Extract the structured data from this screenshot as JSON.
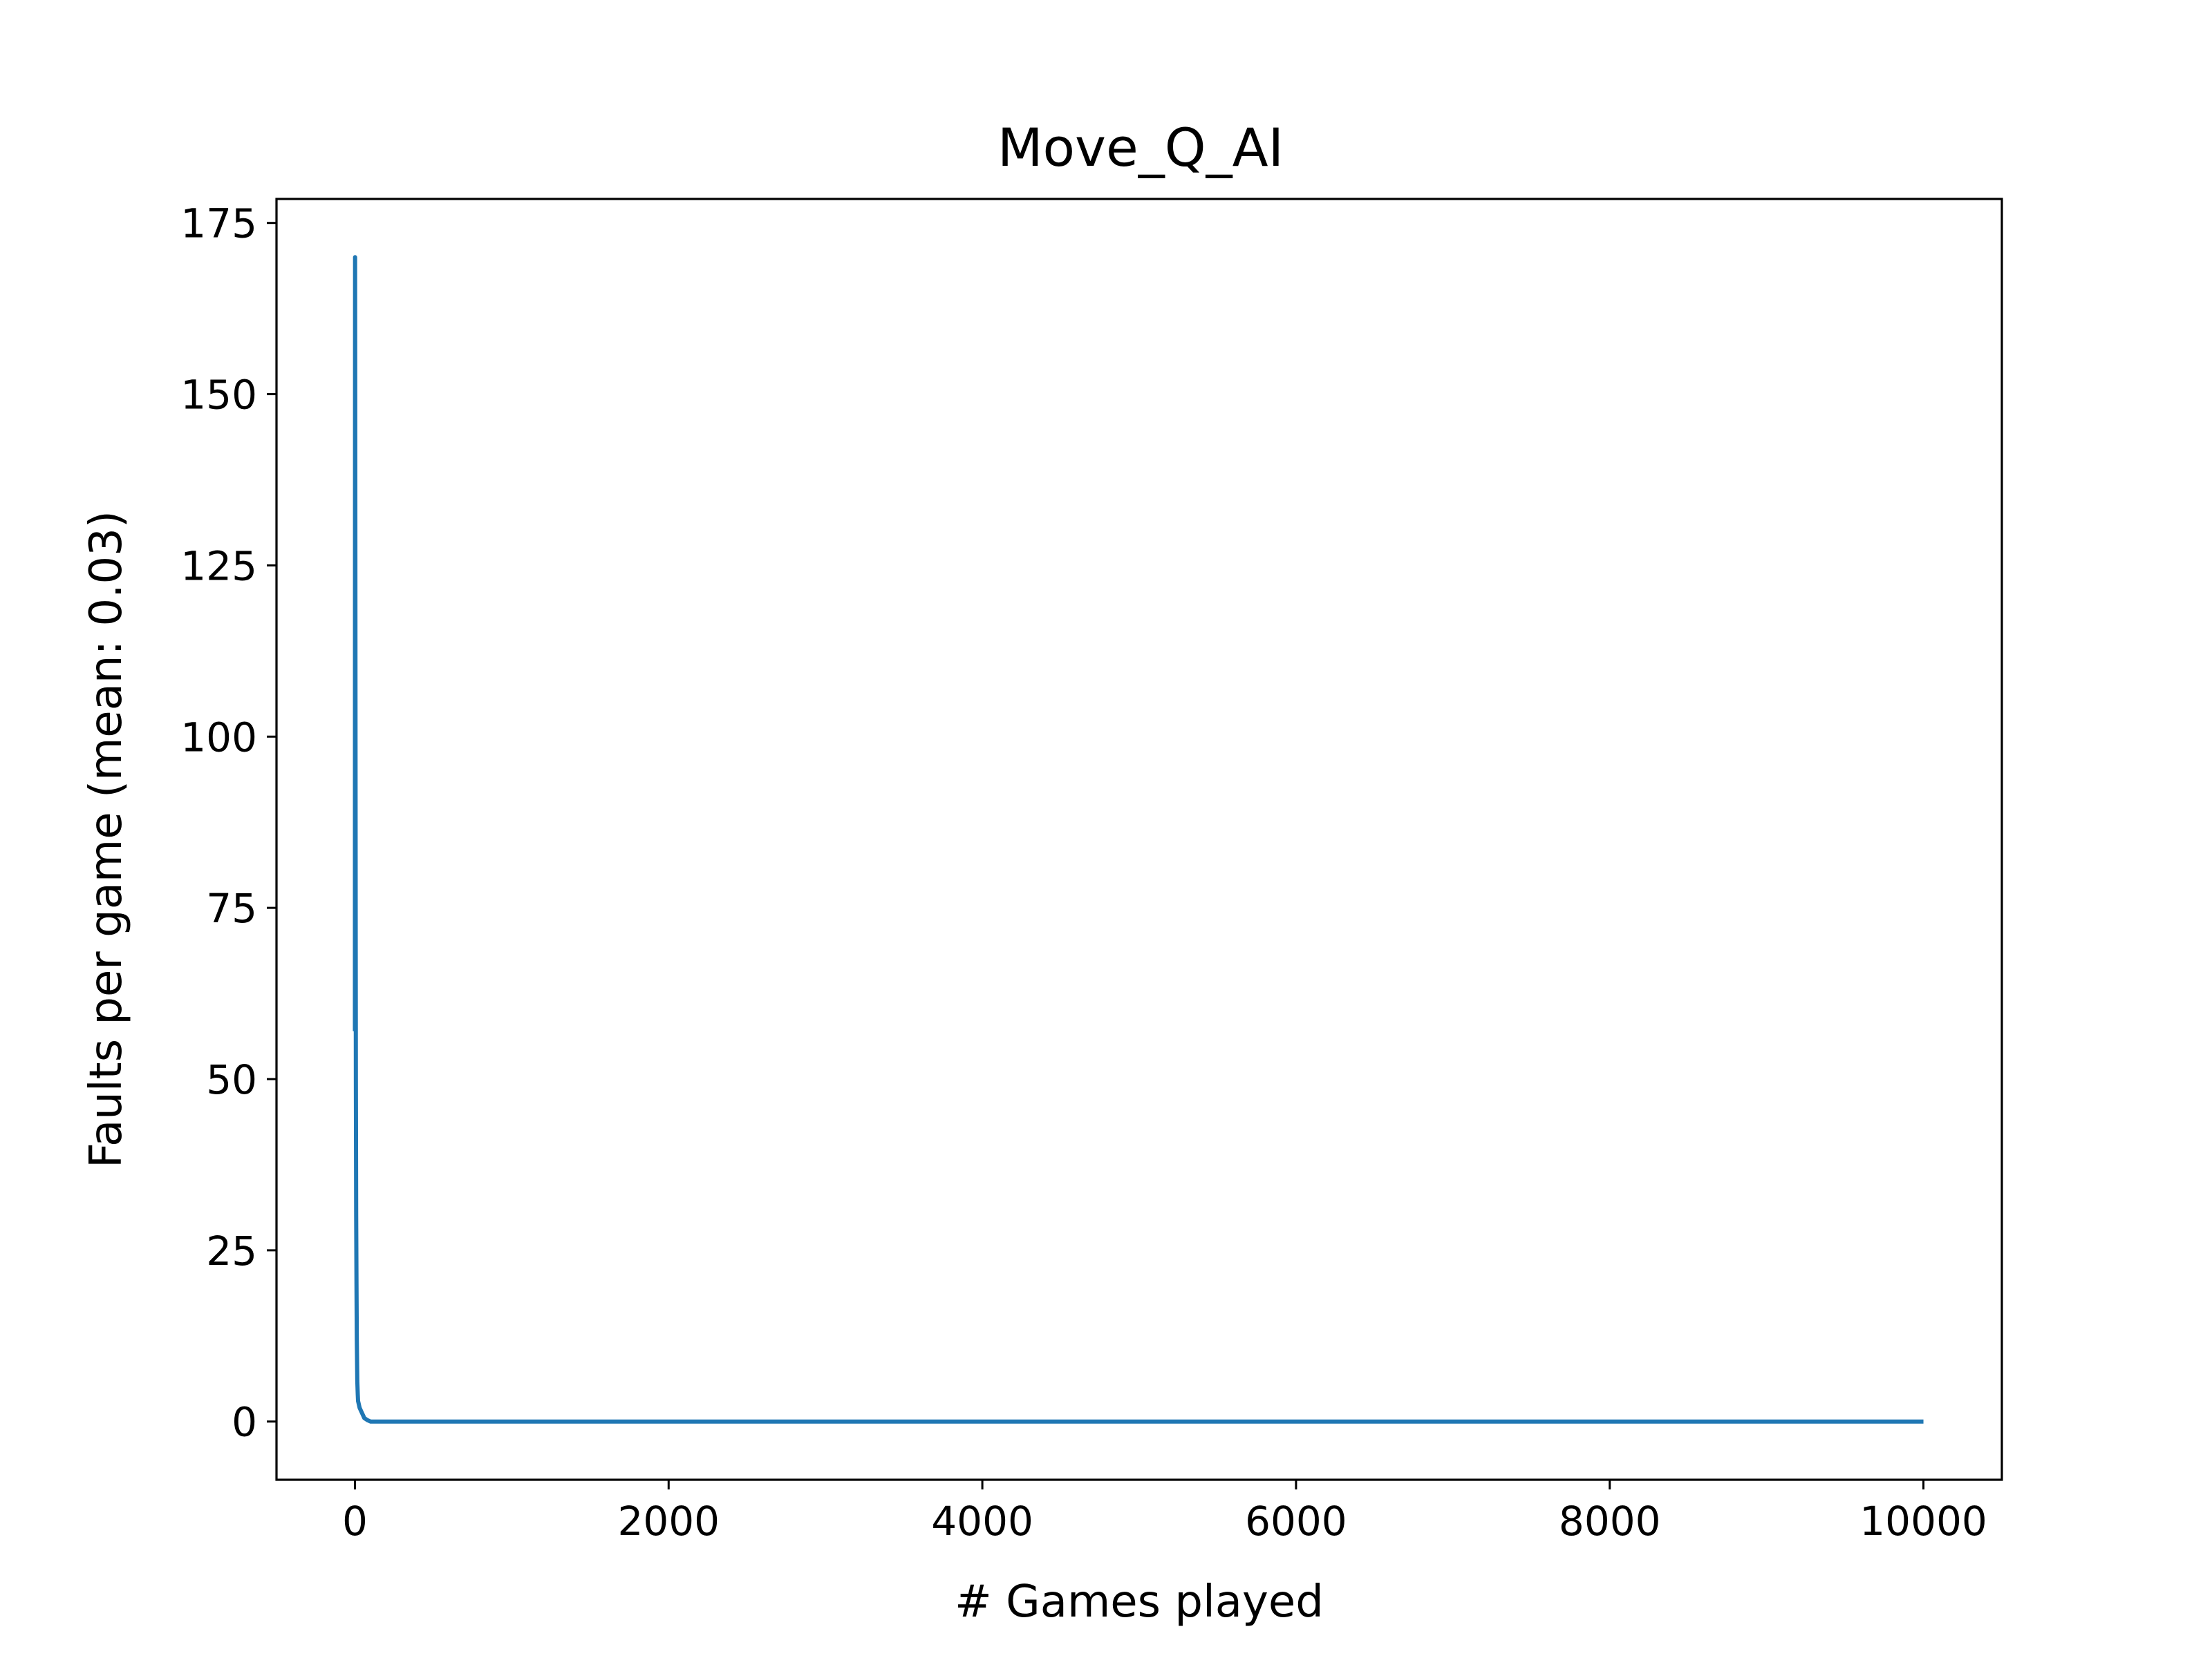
{
  "chart_data": {
    "type": "line",
    "title": "Move_Q_AI",
    "xlabel": "# Games played",
    "ylabel": "Faults per game (mean: 0.03)",
    "xlim": [
      -500,
      10500
    ],
    "ylim": [
      -8.5,
      178.5
    ],
    "xticks": [
      0,
      2000,
      4000,
      6000,
      8000,
      10000
    ],
    "xtick_labels": [
      "0",
      "2000",
      "4000",
      "6000",
      "8000",
      "10000"
    ],
    "yticks": [
      0,
      25,
      50,
      75,
      100,
      125,
      150,
      175
    ],
    "ytick_labels": [
      "0",
      "25",
      "50",
      "75",
      "100",
      "125",
      "150",
      "175"
    ],
    "grid": false,
    "series": [
      {
        "color": "#1f77b4",
        "x": [
          0,
          1,
          2,
          3,
          4,
          5,
          6,
          8,
          10,
          12,
          15,
          18,
          20,
          25,
          30,
          40,
          50,
          60,
          80,
          100,
          150,
          200,
          500,
          1000,
          2000,
          3000,
          4000,
          5000,
          6000,
          7000,
          8000,
          9000,
          10000
        ],
        "y": [
          57,
          170,
          150,
          120,
          95,
          70,
          50,
          30,
          20,
          12,
          6,
          4,
          3,
          2.5,
          2,
          1.5,
          1,
          0.5,
          0.2,
          0,
          0,
          0,
          0,
          0,
          0,
          0,
          0,
          0,
          0,
          0,
          0,
          0,
          0
        ]
      }
    ]
  }
}
